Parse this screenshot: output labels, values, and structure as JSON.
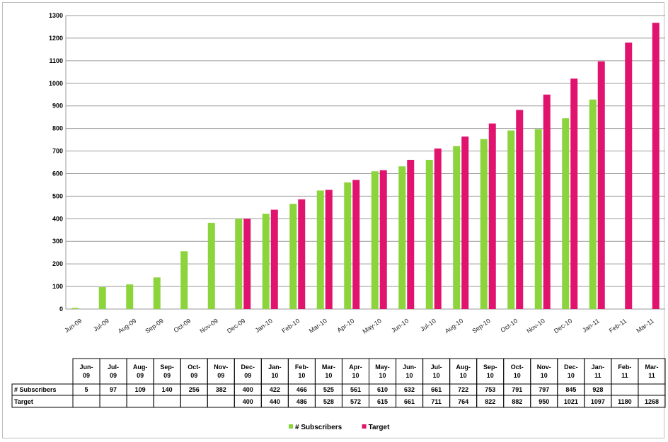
{
  "chart_data": {
    "type": "bar",
    "categories": [
      "Jun-09",
      "Jul-09",
      "Aug-09",
      "Sep-09",
      "Oct-09",
      "Nov-09",
      "Dec-09",
      "Jan-10",
      "Feb-10",
      "Mar-10",
      "Apr-10",
      "May-10",
      "Jun-10",
      "Jul-10",
      "Aug-10",
      "Sep-10",
      "Oct-10",
      "Nov-10",
      "Dec-10",
      "Jan-11",
      "Feb-11",
      "Mar-11"
    ],
    "table_headers": [
      "Jun-09",
      "Jul-09",
      "Aug-09",
      "Sep-09",
      "Oct-09",
      "Nov-09",
      "Dec-09",
      "Jan-10",
      "Feb-10",
      "Mar-10",
      "Apr-10",
      "May-10",
      "Jun-10",
      "Jul-10",
      "Aug-10",
      "Sep-10",
      "Oct-10",
      "Nov-10",
      "Dec-10",
      "Jan-11",
      "Feb-11",
      "Mar-11"
    ],
    "series": [
      {
        "name": "# Subscribers",
        "color": "#8cd43c",
        "values": [
          5,
          97,
          109,
          140,
          256,
          382,
          400,
          422,
          466,
          525,
          561,
          610,
          632,
          661,
          722,
          753,
          791,
          797,
          845,
          928,
          null,
          null
        ]
      },
      {
        "name": "Target",
        "color": "#e0146e",
        "values": [
          null,
          null,
          null,
          null,
          null,
          null,
          400,
          440,
          486,
          528,
          572,
          615,
          661,
          711,
          764,
          822,
          882,
          950,
          1021,
          1097,
          1180,
          1268
        ]
      }
    ],
    "yticks": [
      0,
      100,
      200,
      300,
      400,
      500,
      600,
      700,
      800,
      900,
      1000,
      1100,
      1200,
      1300
    ],
    "ylim": [
      0,
      1300
    ],
    "grid": true,
    "legend": "bottom"
  }
}
